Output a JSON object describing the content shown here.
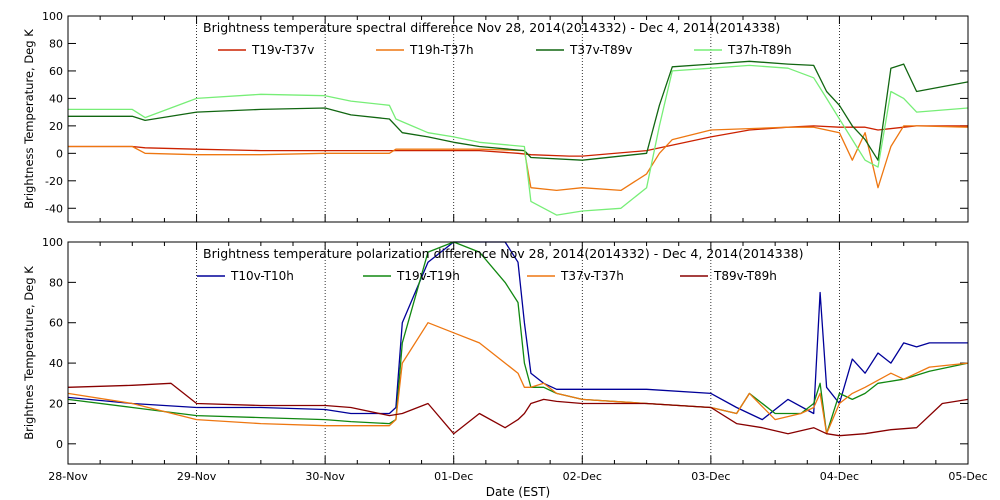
{
  "chart_data": [
    {
      "type": "line",
      "title": "Brightness temperature spectral difference     Nov 28, 2014(2014332) - Dec  4, 2014(2014338)",
      "ylabel": "Brightness Temperature, Deg K",
      "xlabel": "",
      "ylim": [
        -50,
        100
      ],
      "yticks": [
        -40,
        -20,
        0,
        20,
        40,
        60,
        80,
        100
      ],
      "xlim": [
        0,
        7
      ],
      "grid": true,
      "legend": "top, inside plot area, horizontal",
      "series": [
        {
          "name": "T19v-T37v",
          "color": "#cc2200",
          "x": [
            0,
            0.5,
            0.6,
            1,
            1.5,
            2,
            2.5,
            2.55,
            2.8,
            3,
            3.2,
            3.5,
            3.6,
            3.9,
            4,
            4.5,
            5,
            5.3,
            5.6,
            5.8,
            6,
            6.2,
            6.3,
            6.5,
            6.6,
            6.7,
            7
          ],
          "y": [
            5,
            5,
            4,
            3,
            2,
            2,
            2,
            2,
            2,
            2,
            2,
            0,
            -1,
            -2,
            -2,
            2,
            12,
            17,
            19,
            20,
            19,
            19,
            17,
            19,
            20,
            20,
            20
          ]
        },
        {
          "name": "T19h-T37h",
          "color": "#ee7711",
          "x": [
            0,
            0.5,
            0.6,
            1,
            1.5,
            2,
            2.5,
            2.55,
            2.8,
            3,
            3.2,
            3.55,
            3.6,
            3.8,
            4,
            4.3,
            4.5,
            4.6,
            4.7,
            5,
            5.3,
            5.6,
            5.8,
            6,
            6.1,
            6.2,
            6.3,
            6.4,
            6.5,
            6.6,
            7
          ],
          "y": [
            5,
            5,
            0,
            -1,
            -1,
            0,
            0,
            3,
            3,
            3,
            3,
            2,
            -25,
            -27,
            -25,
            -27,
            -15,
            0,
            10,
            17,
            18,
            19,
            19,
            15,
            -5,
            15,
            -25,
            5,
            20,
            20,
            19
          ]
        },
        {
          "name": "T37v-T89v",
          "color": "#116611",
          "x": [
            0,
            0.5,
            0.6,
            1,
            1.5,
            2,
            2.2,
            2.5,
            2.6,
            2.8,
            3,
            3.2,
            3.55,
            3.6,
            4,
            4.5,
            4.6,
            4.7,
            5,
            5.3,
            5.6,
            5.8,
            5.9,
            6,
            6.1,
            6.2,
            6.3,
            6.4,
            6.5,
            6.6,
            7
          ],
          "y": [
            27,
            27,
            24,
            30,
            32,
            33,
            28,
            25,
            15,
            12,
            8,
            5,
            2,
            -3,
            -5,
            0,
            35,
            63,
            65,
            67,
            65,
            64,
            45,
            35,
            20,
            10,
            -5,
            62,
            65,
            45,
            52
          ]
        },
        {
          "name": "T37h-T89h",
          "color": "#77ee77",
          "x": [
            0,
            0.5,
            0.6,
            1,
            1.5,
            2,
            2.2,
            2.5,
            2.55,
            2.8,
            3,
            3.2,
            3.55,
            3.6,
            3.8,
            4,
            4.3,
            4.5,
            4.6,
            4.7,
            5,
            5.3,
            5.6,
            5.8,
            5.9,
            6,
            6.1,
            6.2,
            6.3,
            6.4,
            6.5,
            6.6,
            7
          ],
          "y": [
            32,
            32,
            26,
            40,
            43,
            42,
            38,
            35,
            25,
            15,
            12,
            8,
            5,
            -35,
            -45,
            -42,
            -40,
            -25,
            20,
            60,
            62,
            64,
            62,
            55,
            40,
            25,
            10,
            -5,
            -10,
            45,
            40,
            30,
            33
          ]
        }
      ]
    },
    {
      "type": "line",
      "title": "Brightness temperature polarization difference     Nov 28, 2014(2014332) - Dec  4, 2014(2014338)",
      "ylabel": "Brightnes Temperature, Deg K",
      "xlabel": "Date (EST)",
      "ylim": [
        -10,
        100
      ],
      "yticks": [
        0,
        20,
        40,
        60,
        80,
        100
      ],
      "xlim": [
        0,
        7
      ],
      "xticks": [
        "28-Nov",
        "29-Nov",
        "30-Nov",
        "01-Dec",
        "02-Dec",
        "03-Dec",
        "04-Dec",
        "05-Dec"
      ],
      "grid": true,
      "legend": "top, inside plot area, horizontal",
      "series": [
        {
          "name": "T10v-T10h",
          "color": "#000099",
          "x": [
            0,
            0.5,
            1,
            1.5,
            2,
            2.2,
            2.5,
            2.55,
            2.6,
            2.8,
            3,
            3.2,
            3.4,
            3.5,
            3.55,
            3.6,
            3.7,
            3.8,
            4,
            4.5,
            5,
            5.2,
            5.4,
            5.6,
            5.8,
            5.85,
            5.9,
            6,
            6.1,
            6.2,
            6.3,
            6.4,
            6.5,
            6.6,
            6.7,
            7
          ],
          "y": [
            23,
            20,
            18,
            18,
            17,
            15,
            15,
            18,
            60,
            90,
            100,
            100,
            100,
            90,
            60,
            35,
            30,
            27,
            27,
            27,
            25,
            18,
            12,
            22,
            15,
            75,
            28,
            20,
            42,
            35,
            45,
            40,
            50,
            48,
            50,
            50
          ]
        },
        {
          "name": "T19v-T19h",
          "color": "#118811",
          "x": [
            0,
            0.5,
            1,
            1.5,
            2,
            2.2,
            2.5,
            2.55,
            2.6,
            2.8,
            3,
            3.2,
            3.4,
            3.5,
            3.55,
            3.6,
            3.7,
            3.8,
            4,
            4.5,
            5,
            5.2,
            5.3,
            5.5,
            5.7,
            5.8,
            5.85,
            5.9,
            6,
            6.1,
            6.2,
            6.3,
            6.5,
            6.7,
            7
          ],
          "y": [
            22,
            18,
            14,
            13,
            12,
            11,
            10,
            12,
            50,
            95,
            100,
            95,
            80,
            70,
            40,
            28,
            28,
            25,
            22,
            20,
            18,
            15,
            25,
            15,
            15,
            20,
            30,
            5,
            25,
            22,
            25,
            30,
            32,
            36,
            40
          ]
        },
        {
          "name": "T37v-T37h",
          "color": "#ee7711",
          "x": [
            0,
            0.5,
            1,
            1.5,
            2,
            2.2,
            2.5,
            2.55,
            2.6,
            2.8,
            3,
            3.2,
            3.4,
            3.5,
            3.55,
            3.6,
            3.7,
            3.8,
            4,
            4.5,
            5,
            5.2,
            5.3,
            5.5,
            5.7,
            5.8,
            5.85,
            5.9,
            6,
            6.1,
            6.2,
            6.4,
            6.5,
            6.7,
            7
          ],
          "y": [
            25,
            20,
            12,
            10,
            9,
            9,
            9,
            12,
            40,
            60,
            55,
            50,
            40,
            35,
            28,
            28,
            30,
            25,
            22,
            20,
            18,
            15,
            25,
            12,
            15,
            18,
            25,
            5,
            20,
            25,
            28,
            35,
            32,
            38,
            40
          ]
        },
        {
          "name": "T89v-T89h",
          "color": "#880000",
          "x": [
            0,
            0.5,
            0.8,
            1,
            1.5,
            2,
            2.2,
            2.5,
            2.6,
            2.8,
            3,
            3.2,
            3.4,
            3.5,
            3.55,
            3.6,
            3.7,
            3.8,
            4,
            4.5,
            5,
            5.2,
            5.4,
            5.6,
            5.8,
            5.9,
            6,
            6.2,
            6.4,
            6.6,
            6.8,
            7
          ],
          "y": [
            28,
            29,
            30,
            20,
            19,
            19,
            18,
            14,
            15,
            20,
            5,
            15,
            8,
            12,
            15,
            20,
            22,
            21,
            20,
            20,
            18,
            10,
            8,
            5,
            8,
            5,
            4,
            5,
            7,
            8,
            20,
            22
          ]
        }
      ]
    }
  ]
}
